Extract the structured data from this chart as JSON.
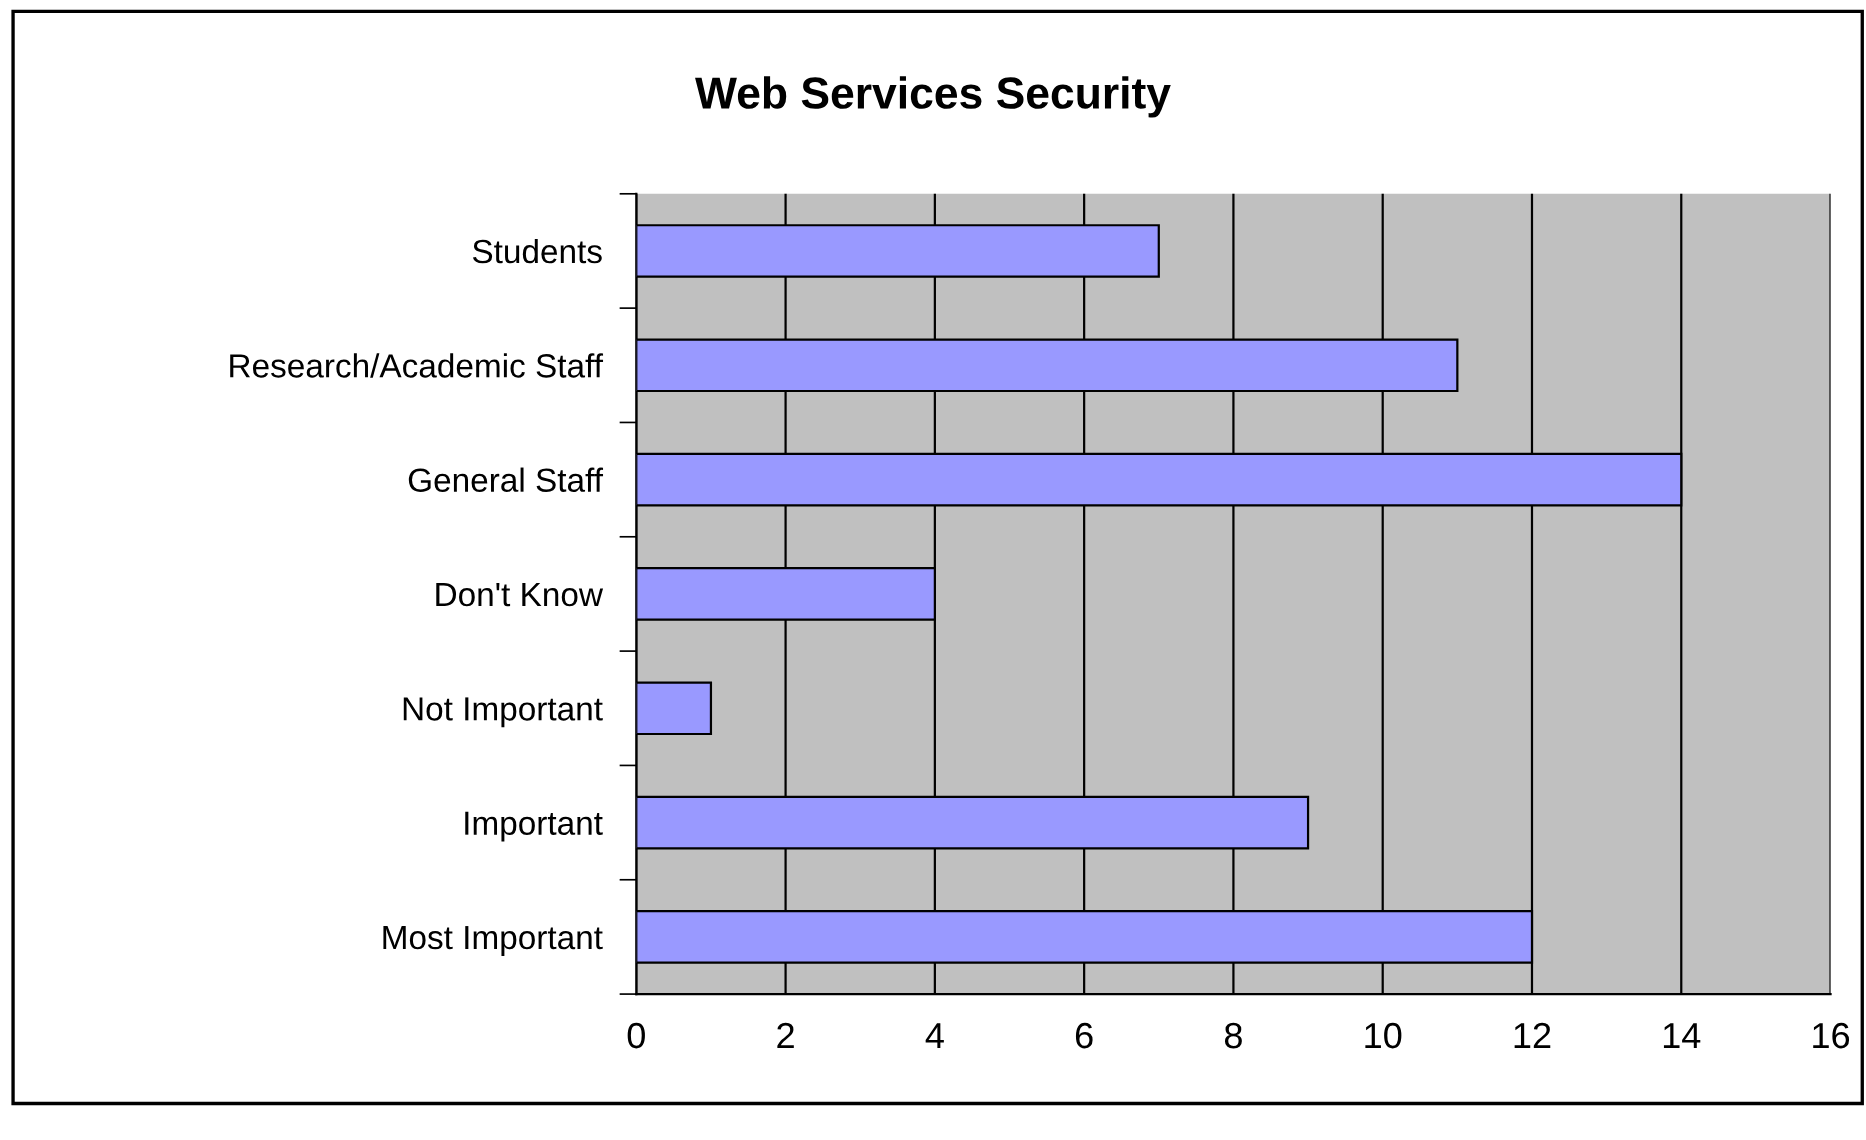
{
  "chart_data": {
    "type": "bar",
    "orientation": "horizontal",
    "title": "Web Services Security",
    "categories": [
      "Students",
      "Research/Academic Staff",
      "General Staff",
      "Don't Know",
      "Not Important",
      "Important",
      "Most Important"
    ],
    "values": [
      7,
      11,
      14,
      4,
      1,
      9,
      12
    ],
    "color": "#9999ff",
    "xlim": [
      0,
      16
    ],
    "xticks": [
      0,
      2,
      4,
      6,
      8,
      10,
      12,
      14,
      16
    ],
    "grid": "x"
  }
}
